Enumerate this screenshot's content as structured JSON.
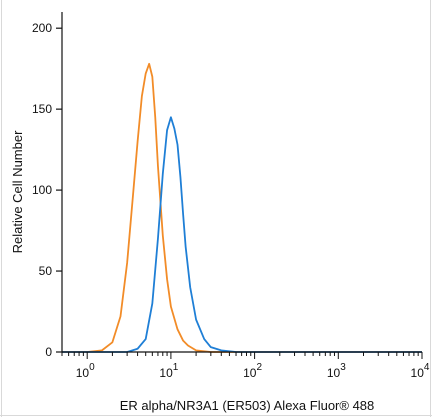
{
  "chart_data": {
    "type": "line",
    "xlabel": "ER alpha/NR3A1 (ER503) Alexa Fluor® 488",
    "ylabel": "Relative Cell Number",
    "x_scale": "log",
    "xlim": [
      0.5,
      10000
    ],
    "ylim": [
      0,
      210
    ],
    "y_ticks": [
      0,
      50,
      100,
      150,
      200
    ],
    "x_ticks": [
      {
        "base": "10",
        "exp": "0",
        "value": 1
      },
      {
        "base": "10",
        "exp": "1",
        "value": 10
      },
      {
        "base": "10",
        "exp": "2",
        "value": 100
      },
      {
        "base": "10",
        "exp": "3",
        "value": 1000
      },
      {
        "base": "10",
        "exp": "4",
        "value": 10000
      }
    ],
    "grid": false,
    "series": [
      {
        "color": "#f28c28",
        "points": [
          [
            0.5,
            0
          ],
          [
            1.0,
            0
          ],
          [
            1.5,
            1
          ],
          [
            2.0,
            6
          ],
          [
            2.5,
            22
          ],
          [
            3.0,
            55
          ],
          [
            3.5,
            95
          ],
          [
            4.0,
            130
          ],
          [
            4.5,
            158
          ],
          [
            5.0,
            172
          ],
          [
            5.5,
            178
          ],
          [
            6.0,
            170
          ],
          [
            6.5,
            145
          ],
          [
            7.0,
            115
          ],
          [
            8.0,
            72
          ],
          [
            9.0,
            45
          ],
          [
            10.0,
            28
          ],
          [
            12.0,
            14
          ],
          [
            14.0,
            7
          ],
          [
            16.0,
            4
          ],
          [
            20.0,
            1
          ],
          [
            30.0,
            0
          ],
          [
            10000,
            0
          ]
        ]
      },
      {
        "color": "#1f7fd6",
        "points": [
          [
            0.5,
            0
          ],
          [
            3.0,
            0
          ],
          [
            4.0,
            2
          ],
          [
            5.0,
            8
          ],
          [
            6.0,
            30
          ],
          [
            7.0,
            70
          ],
          [
            8.0,
            110
          ],
          [
            9.0,
            137
          ],
          [
            10.0,
            145
          ],
          [
            11.0,
            138
          ],
          [
            12.0,
            128
          ],
          [
            13.0,
            108
          ],
          [
            14.0,
            85
          ],
          [
            15.0,
            65
          ],
          [
            17.0,
            40
          ],
          [
            20.0,
            20
          ],
          [
            25.0,
            8
          ],
          [
            30.0,
            3
          ],
          [
            40.0,
            1
          ],
          [
            60.0,
            0
          ],
          [
            10000,
            0
          ]
        ]
      }
    ]
  }
}
